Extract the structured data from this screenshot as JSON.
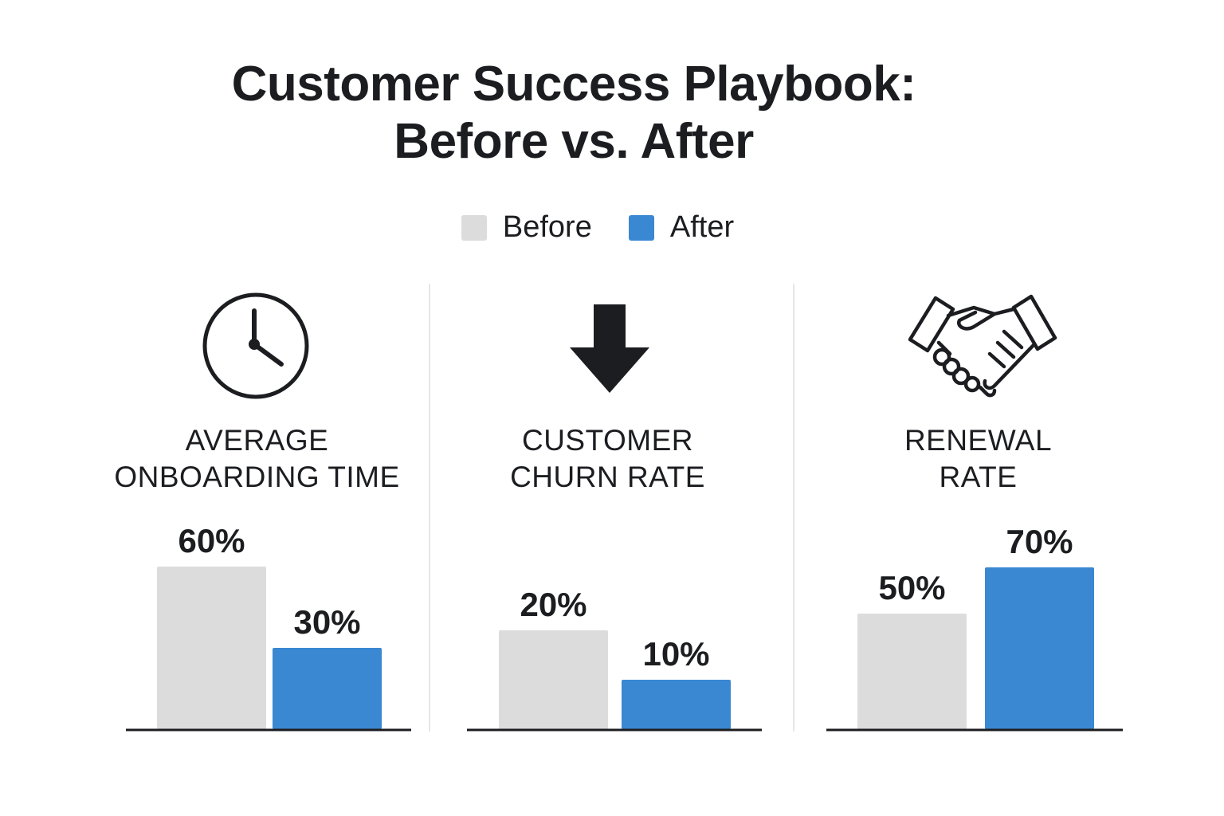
{
  "title_line1": "Customer Success Playbook:",
  "title_line2": "Before vs. After",
  "legend": [
    {
      "label": "Before",
      "color": "#dcdcdc"
    },
    {
      "label": "After",
      "color": "#3a87d2"
    }
  ],
  "colors": {
    "before": "#dcdcdc",
    "after": "#3a87d2",
    "axis": "#1c1d20"
  },
  "chart_data": [
    {
      "type": "bar",
      "icon": "clock-icon",
      "label_line1": "AVERAGE",
      "label_line2": "ONBOARDING TIME",
      "categories": [
        "Before",
        "After"
      ],
      "values": [
        60,
        30
      ],
      "value_labels": [
        "60%",
        "30%"
      ],
      "legend_position": "top-center",
      "grid": false
    },
    {
      "type": "bar",
      "icon": "arrow-down-icon",
      "label_line1": "CUSTOMER",
      "label_line2": "CHURN RATE",
      "categories": [
        "Before",
        "After"
      ],
      "values": [
        20,
        10
      ],
      "value_labels": [
        "20%",
        "10%"
      ],
      "legend_position": "top-center",
      "grid": false
    },
    {
      "type": "bar",
      "icon": "handshake-icon",
      "label_line1": "RENEWAL",
      "label_line2": "RATE",
      "categories": [
        "Before",
        "After"
      ],
      "values": [
        50,
        70
      ],
      "value_labels": [
        "50%",
        "70%"
      ],
      "legend_position": "top-center",
      "grid": false
    }
  ]
}
